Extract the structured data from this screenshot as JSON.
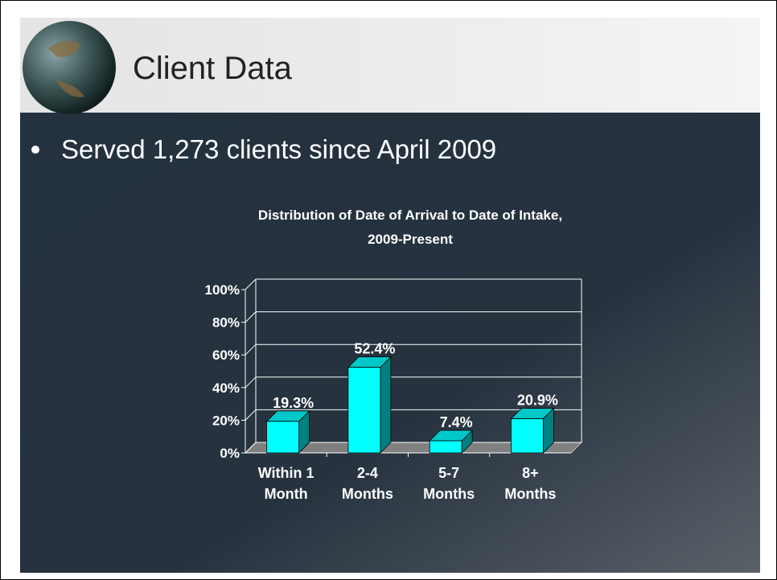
{
  "header": {
    "title": "Client Data"
  },
  "bullets": [
    "Served 1,273 clients since April 2009"
  ],
  "chart_data": {
    "type": "bar3d",
    "title": "Distribution of Date of Arrival to Date of Intake,",
    "subtitle": "2009-Present",
    "categories": [
      "Within 1 Month",
      "2-4 Months",
      "5-7 Months",
      "8+ Months"
    ],
    "values": [
      19.3,
      52.4,
      7.4,
      20.9
    ],
    "value_labels": [
      "19.3%",
      "52.4%",
      "7.4%",
      "20.9%"
    ],
    "color": "#00ffff",
    "ylim": [
      0,
      100
    ],
    "yticks": [
      {
        "value": 0,
        "label": "0%"
      },
      {
        "value": 20,
        "label": "20%"
      },
      {
        "value": 40,
        "label": "40%"
      },
      {
        "value": 60,
        "label": "60%"
      },
      {
        "value": 80,
        "label": "80%"
      },
      {
        "value": 100,
        "label": "100%"
      }
    ],
    "grid": true
  }
}
